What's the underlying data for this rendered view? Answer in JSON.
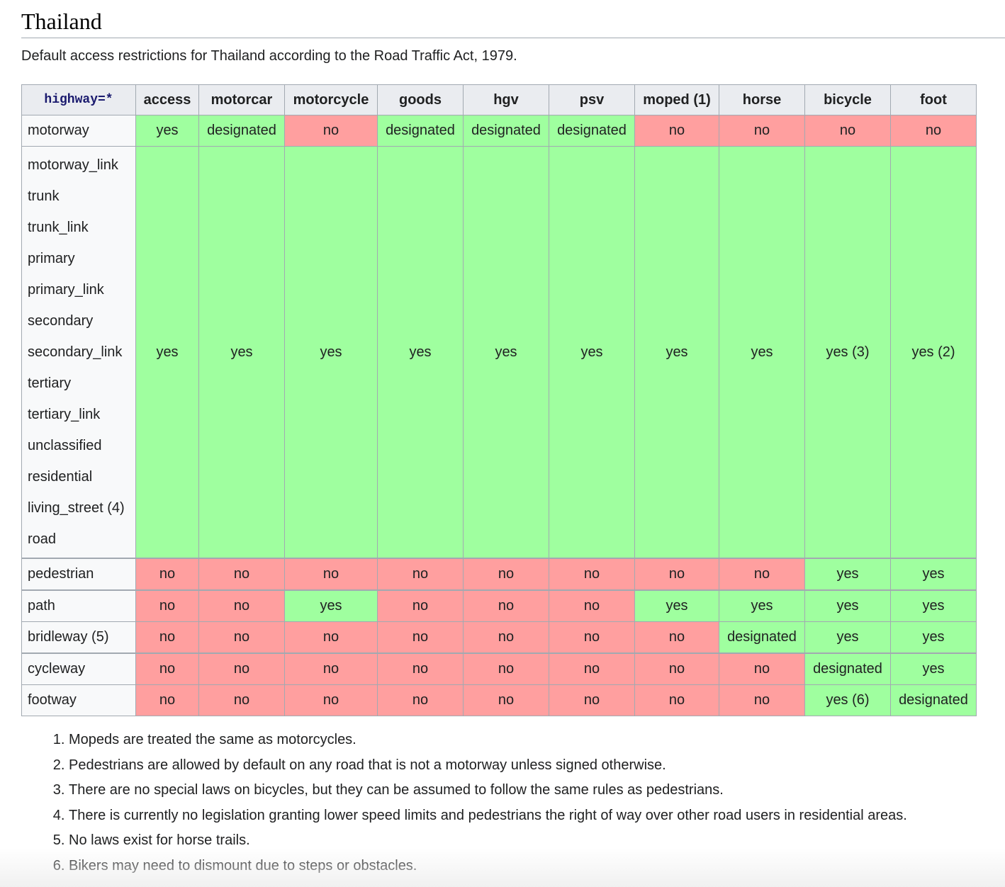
{
  "heading": "Thailand",
  "description": "Default access restrictions for Thailand according to the Road Traffic Act, 1979.",
  "table": {
    "corner": "highway=*",
    "columns": [
      "access",
      "motorcar",
      "motorcycle",
      "goods",
      "hgv",
      "psv",
      "moped (1)",
      "horse",
      "bicycle",
      "foot"
    ],
    "row_motorway": {
      "label": "motorway",
      "cells": [
        "yes",
        "designated",
        "no",
        "designated",
        "designated",
        "designated",
        "no",
        "no",
        "no",
        "no"
      ]
    },
    "row_group": {
      "labels": [
        "motorway_link",
        "trunk",
        "trunk_link",
        "primary",
        "primary_link",
        "secondary",
        "secondary_link",
        "tertiary",
        "tertiary_link",
        "unclassified",
        "residential",
        "living_street (4)",
        "road"
      ],
      "cells": [
        "yes",
        "yes",
        "yes",
        "yes",
        "yes",
        "yes",
        "yes",
        "yes",
        "yes (3)",
        "yes (2)"
      ]
    },
    "row_pedestrian": {
      "label": "pedestrian",
      "cells": [
        "no",
        "no",
        "no",
        "no",
        "no",
        "no",
        "no",
        "no",
        "yes",
        "yes"
      ]
    },
    "row_path": {
      "label": "path",
      "cells": [
        "no",
        "no",
        "yes",
        "no",
        "no",
        "no",
        "yes",
        "yes",
        "yes",
        "yes"
      ]
    },
    "row_bridleway": {
      "label": "bridleway (5)",
      "cells": [
        "no",
        "no",
        "no",
        "no",
        "no",
        "no",
        "no",
        "designated",
        "yes",
        "yes"
      ]
    },
    "row_cycleway": {
      "label": "cycleway",
      "cells": [
        "no",
        "no",
        "no",
        "no",
        "no",
        "no",
        "no",
        "no",
        "designated",
        "yes"
      ]
    },
    "row_footway": {
      "label": "footway",
      "cells": [
        "no",
        "no",
        "no",
        "no",
        "no",
        "no",
        "no",
        "no",
        "yes (6)",
        "designated"
      ]
    }
  },
  "colors": {
    "allowed": "#9fff9f",
    "denied": "#ff9f9f",
    "header": "#eaecf0"
  },
  "notes": [
    "Mopeds are treated the same as motorcycles.",
    "Pedestrians are allowed by default on any road that is not a motorway unless signed otherwise.",
    "There are no special laws on bicycles, but they can be assumed to follow the same rules as pedestrians.",
    "There is currently no legislation granting lower speed limits and pedestrians the right of way over other road users in residential areas.",
    "No laws exist for horse trails.",
    "Bikers may need to dismount due to steps or obstacles."
  ]
}
